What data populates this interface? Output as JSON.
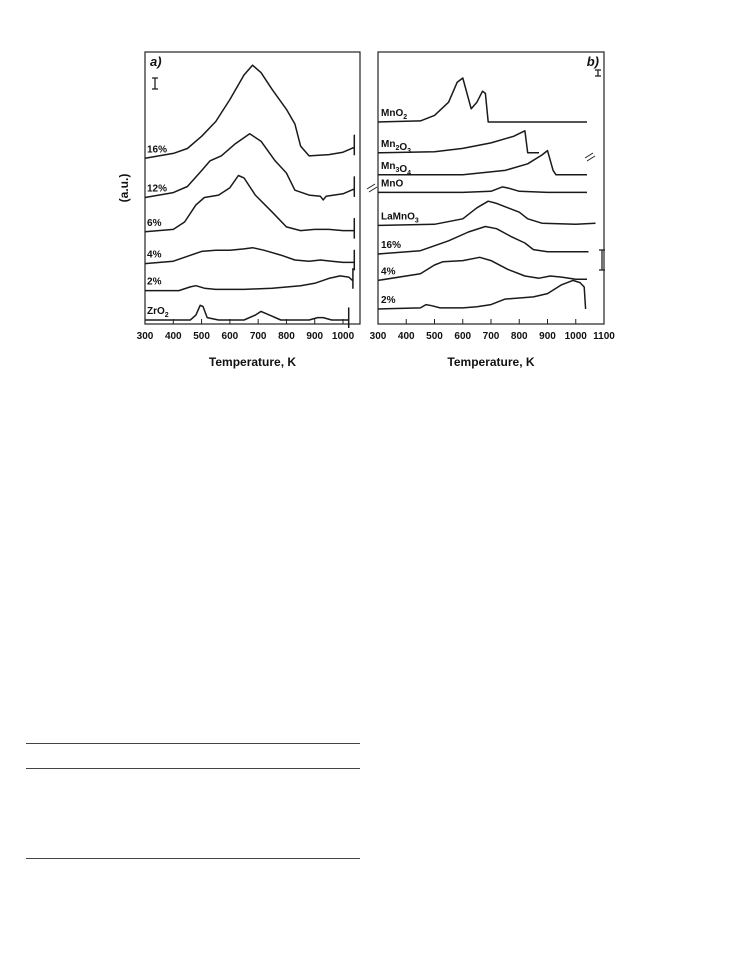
{
  "chart_data": [
    {
      "type": "line",
      "panel_label": "a)",
      "xlabel": "Temperature, K",
      "ylabel": "(a.u.)",
      "xlim": [
        300,
        1060
      ],
      "xticks": [
        300,
        400,
        500,
        600,
        700,
        800,
        900,
        1000
      ],
      "grid": false,
      "series": [
        {
          "name": "16%",
          "baseline": 8.6,
          "points": [
            [
              300,
              0
            ],
            [
              400,
              0.2
            ],
            [
              450,
              0.4
            ],
            [
              500,
              0.9
            ],
            [
              550,
              1.5
            ],
            [
              600,
              2.4
            ],
            [
              650,
              3.4
            ],
            [
              680,
              3.8
            ],
            [
              710,
              3.5
            ],
            [
              750,
              2.8
            ],
            [
              800,
              2.0
            ],
            [
              830,
              1.4
            ],
            [
              850,
              0.5
            ],
            [
              880,
              0.1
            ],
            [
              950,
              0.15
            ],
            [
              1000,
              0.25
            ],
            [
              1040,
              0.45
            ]
          ]
        },
        {
          "name": "12%",
          "baseline": 7.0,
          "points": [
            [
              300,
              0
            ],
            [
              400,
              0.2
            ],
            [
              450,
              0.45
            ],
            [
              500,
              1.1
            ],
            [
              530,
              1.5
            ],
            [
              570,
              1.7
            ],
            [
              620,
              2.2
            ],
            [
              670,
              2.6
            ],
            [
              710,
              2.3
            ],
            [
              760,
              1.5
            ],
            [
              800,
              1.0
            ],
            [
              830,
              0.3
            ],
            [
              880,
              0.1
            ],
            [
              920,
              0.05
            ],
            [
              930,
              -0.1
            ],
            [
              940,
              0.05
            ],
            [
              1000,
              0.15
            ],
            [
              1040,
              0.35
            ]
          ]
        },
        {
          "name": "6%",
          "baseline": 5.6,
          "points": [
            [
              300,
              0
            ],
            [
              400,
              0.1
            ],
            [
              440,
              0.4
            ],
            [
              480,
              1.1
            ],
            [
              510,
              1.4
            ],
            [
              560,
              1.5
            ],
            [
              600,
              1.8
            ],
            [
              630,
              2.3
            ],
            [
              650,
              2.2
            ],
            [
              690,
              1.5
            ],
            [
              750,
              0.8
            ],
            [
              800,
              0.2
            ],
            [
              850,
              0.05
            ],
            [
              900,
              0.1
            ],
            [
              950,
              0.1
            ],
            [
              1000,
              0.05
            ],
            [
              1040,
              0.05
            ]
          ]
        },
        {
          "name": "4%",
          "baseline": 4.3,
          "points": [
            [
              300,
              0
            ],
            [
              400,
              0.1
            ],
            [
              450,
              0.3
            ],
            [
              500,
              0.5
            ],
            [
              550,
              0.55
            ],
            [
              600,
              0.55
            ],
            [
              650,
              0.6
            ],
            [
              680,
              0.65
            ],
            [
              720,
              0.55
            ],
            [
              780,
              0.35
            ],
            [
              830,
              0.15
            ],
            [
              880,
              0.1
            ],
            [
              920,
              0.15
            ],
            [
              960,
              0.1
            ],
            [
              1000,
              0.05
            ],
            [
              1040,
              0.05
            ]
          ]
        },
        {
          "name": "2%",
          "baseline": 3.2,
          "points": [
            [
              300,
              0
            ],
            [
              420,
              0
            ],
            [
              460,
              0.15
            ],
            [
              480,
              0.2
            ],
            [
              510,
              0.1
            ],
            [
              550,
              0.05
            ],
            [
              650,
              0.05
            ],
            [
              750,
              0.1
            ],
            [
              850,
              0.2
            ],
            [
              900,
              0.3
            ],
            [
              950,
              0.5
            ],
            [
              990,
              0.6
            ],
            [
              1020,
              0.55
            ],
            [
              1035,
              0.4
            ]
          ]
        },
        {
          "name": "ZrO2",
          "baseline": 2.0,
          "points": [
            [
              300,
              0
            ],
            [
              460,
              0
            ],
            [
              480,
              0.2
            ],
            [
              495,
              0.6
            ],
            [
              505,
              0.55
            ],
            [
              520,
              0.1
            ],
            [
              560,
              0
            ],
            [
              650,
              0
            ],
            [
              690,
              0.2
            ],
            [
              710,
              0.35
            ],
            [
              740,
              0.2
            ],
            [
              780,
              0
            ],
            [
              880,
              0
            ],
            [
              910,
              0.1
            ],
            [
              930,
              0.1
            ],
            [
              960,
              0
            ],
            [
              1020,
              0
            ]
          ]
        }
      ]
    },
    {
      "type": "line",
      "panel_label": "b)",
      "xlabel": "Temperature, K",
      "xlim": [
        300,
        1100
      ],
      "xticks": [
        300,
        400,
        500,
        600,
        700,
        800,
        900,
        1000,
        1100
      ],
      "grid": false,
      "series": [
        {
          "name": "MnO2",
          "baseline": 11.0,
          "points": [
            [
              300,
              0
            ],
            [
              450,
              0.05
            ],
            [
              500,
              0.3
            ],
            [
              550,
              0.9
            ],
            [
              580,
              1.8
            ],
            [
              600,
              2.0
            ],
            [
              615,
              1.3
            ],
            [
              630,
              0.6
            ],
            [
              650,
              0.9
            ],
            [
              670,
              1.4
            ],
            [
              680,
              1.3
            ],
            [
              690,
              0
            ],
            [
              800,
              0
            ],
            [
              1000,
              0
            ],
            [
              1040,
              0
            ]
          ]
        },
        {
          "name": "Mn2O3",
          "baseline": 9.6,
          "points": [
            [
              300,
              0
            ],
            [
              500,
              0.05
            ],
            [
              600,
              0.2
            ],
            [
              700,
              0.45
            ],
            [
              780,
              0.75
            ],
            [
              820,
              1.0
            ],
            [
              830,
              0
            ],
            [
              870,
              0
            ]
          ]
        },
        {
          "name": "Mn3O4",
          "baseline": 8.6,
          "points": [
            [
              300,
              0
            ],
            [
              600,
              0
            ],
            [
              750,
              0.2
            ],
            [
              830,
              0.5
            ],
            [
              880,
              0.9
            ],
            [
              900,
              1.1
            ],
            [
              920,
              0.2
            ],
            [
              930,
              0
            ],
            [
              1040,
              0
            ]
          ]
        },
        {
          "name": "MnO",
          "baseline": 7.8,
          "points": [
            [
              300,
              0
            ],
            [
              600,
              0
            ],
            [
              700,
              0.05
            ],
            [
              740,
              0.25
            ],
            [
              760,
              0.2
            ],
            [
              800,
              0.05
            ],
            [
              900,
              0
            ],
            [
              1040,
              0
            ]
          ]
        },
        {
          "name": "LaMnO3",
          "baseline": 6.3,
          "points": [
            [
              300,
              0
            ],
            [
              500,
              0.05
            ],
            [
              600,
              0.3
            ],
            [
              650,
              0.8
            ],
            [
              690,
              1.1
            ],
            [
              720,
              1.0
            ],
            [
              760,
              0.8
            ],
            [
              800,
              0.6
            ],
            [
              830,
              0.3
            ],
            [
              880,
              0.1
            ],
            [
              1000,
              0.05
            ],
            [
              1070,
              0.1
            ]
          ]
        },
        {
          "name": "16%",
          "baseline": 5.0,
          "points": [
            [
              300,
              0
            ],
            [
              450,
              0.15
            ],
            [
              550,
              0.6
            ],
            [
              620,
              1.0
            ],
            [
              680,
              1.25
            ],
            [
              720,
              1.15
            ],
            [
              770,
              0.8
            ],
            [
              820,
              0.5
            ],
            [
              850,
              0.2
            ],
            [
              900,
              0.1
            ],
            [
              1000,
              0.1
            ],
            [
              1045,
              0.1
            ]
          ]
        },
        {
          "name": "4%",
          "baseline": 3.8,
          "points": [
            [
              300,
              0
            ],
            [
              450,
              0.3
            ],
            [
              500,
              0.7
            ],
            [
              530,
              0.85
            ],
            [
              600,
              0.9
            ],
            [
              660,
              1.05
            ],
            [
              700,
              0.9
            ],
            [
              760,
              0.5
            ],
            [
              820,
              0.2
            ],
            [
              870,
              0.1
            ],
            [
              910,
              0.2
            ],
            [
              950,
              0.15
            ],
            [
              1000,
              0.05
            ],
            [
              1040,
              0.05
            ]
          ]
        },
        {
          "name": "2%",
          "baseline": 2.5,
          "points": [
            [
              300,
              0
            ],
            [
              450,
              0.05
            ],
            [
              470,
              0.2
            ],
            [
              490,
              0.15
            ],
            [
              520,
              0.05
            ],
            [
              600,
              0.05
            ],
            [
              650,
              0.1
            ],
            [
              700,
              0.2
            ],
            [
              750,
              0.45
            ],
            [
              800,
              0.5
            ],
            [
              850,
              0.55
            ],
            [
              900,
              0.7
            ],
            [
              950,
              1.1
            ],
            [
              990,
              1.3
            ],
            [
              1015,
              1.2
            ],
            [
              1030,
              1.0
            ],
            [
              1035,
              0
            ]
          ]
        }
      ]
    }
  ]
}
